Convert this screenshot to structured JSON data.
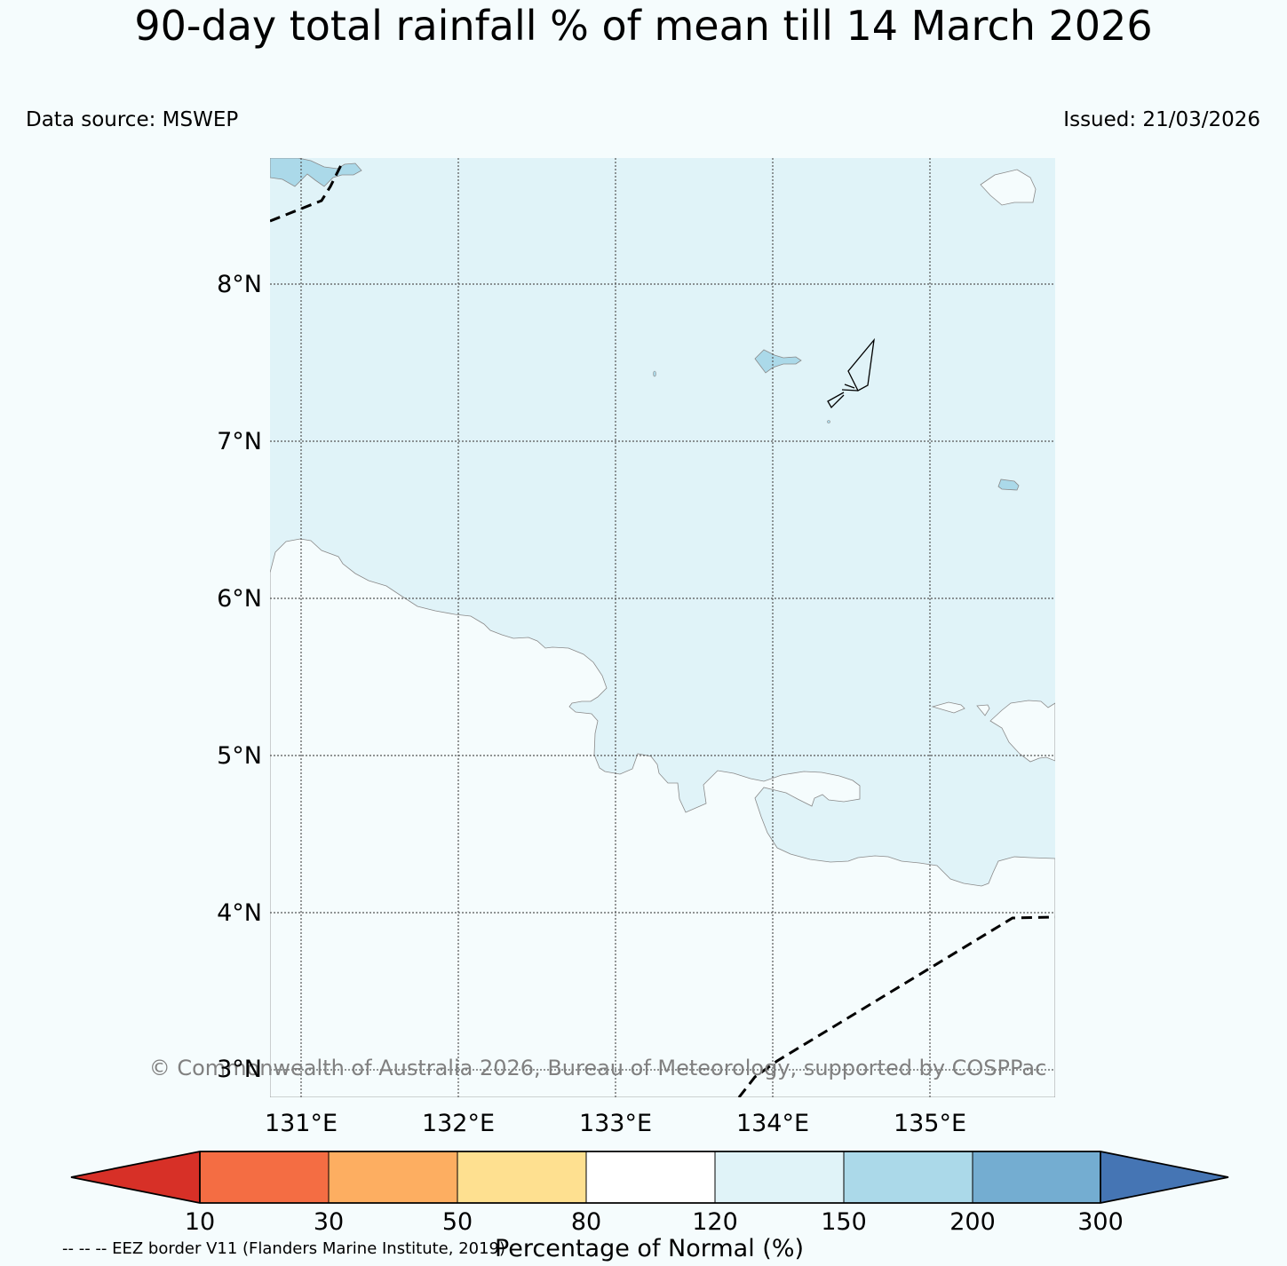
{
  "title": "90-day total rainfall % of mean till 14 March 2026",
  "data_source": "Data source: MSWEP",
  "issued": "Issued: 21/03/2026",
  "lat_labels": [
    "8°N",
    "7°N",
    "6°N",
    "5°N",
    "4°N",
    "3°N"
  ],
  "lon_labels": [
    "131°E",
    "132°E",
    "133°E",
    "134°E",
    "135°E"
  ],
  "colorbar": {
    "title": "Percentage of Normal (%)",
    "ticks": [
      "10",
      "30",
      "50",
      "80",
      "120",
      "150",
      "200",
      "300"
    ],
    "colors": {
      "below10": "#d73027",
      "c10_30": "#f46d43",
      "c30_50": "#fdae61",
      "c50_80": "#fee090",
      "c80_120": "#ffffff",
      "c120_150": "#e0f3f8",
      "c150_200": "#abd9e9",
      "c200_300": "#74add1",
      "above300": "#4575b4"
    }
  },
  "map": {
    "sea_color": "#e0f3f8",
    "land_color": "#f5fcfd",
    "wet_color": "#abd9e9"
  },
  "copyright": "© Commonwealth of Australia 2026, Bureau of Meteorology, supported by COSPPac",
  "eez_note": "-- -- -- EEZ border V11 (Flanders Marine Institute, 2019)"
}
